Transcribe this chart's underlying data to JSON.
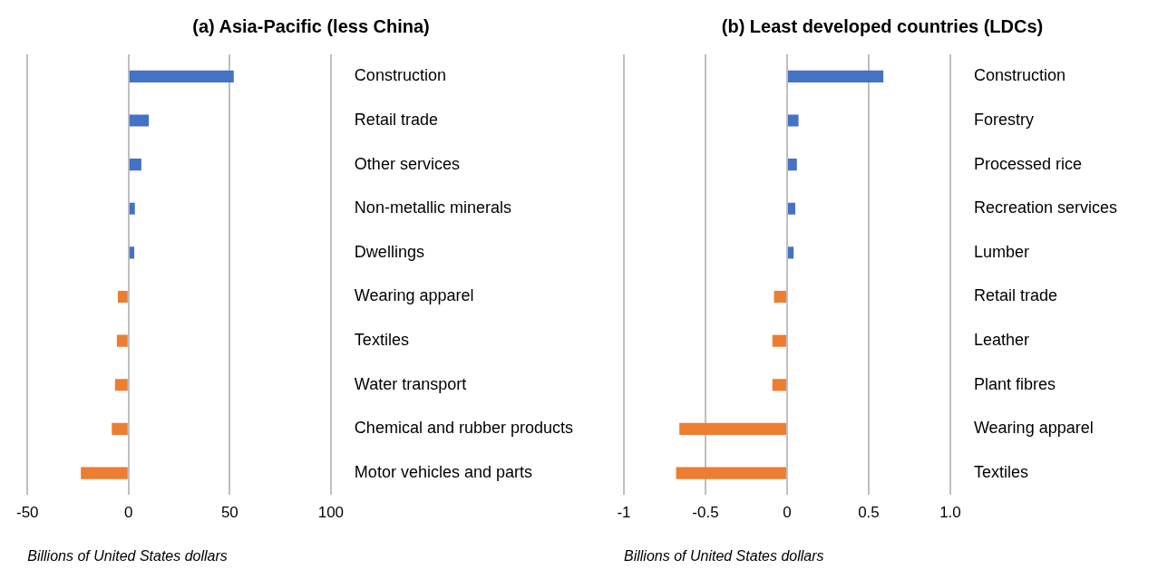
{
  "chart_data": [
    {
      "type": "bar",
      "orientation": "horizontal",
      "title": "(a) Asia-Pacific (less China)",
      "xlabel": "Billions of United States dollars",
      "categories": [
        "Construction",
        "Retail trade",
        "Other services",
        "Non-metallic minerals",
        "Dwellings",
        "Wearing apparel",
        "Textiles",
        "Water transport",
        "Chemical and rubber products",
        "Motor vehicles and parts"
      ],
      "values": [
        52,
        10,
        6.3,
        3.1,
        2.8,
        -5.3,
        -5.8,
        -6.7,
        -8.3,
        -23.6
      ],
      "colors": [
        "#4472c4",
        "#4472c4",
        "#4472c4",
        "#4472c4",
        "#4472c4",
        "#ed7d31",
        "#ed7d31",
        "#ed7d31",
        "#ed7d31",
        "#ed7d31"
      ],
      "xlim": [
        -50,
        100
      ],
      "xticks": [
        -50,
        0,
        50,
        100
      ],
      "grid": "x",
      "legend": false
    },
    {
      "type": "bar",
      "orientation": "horizontal",
      "title": "(b) Least developed countries (LDCs)",
      "xlabel": "Billions of United States dollars",
      "categories": [
        "Construction",
        "Forestry",
        "Processed rice",
        "Recreation services",
        "Lumber",
        "Retail trade",
        "Leather",
        "Plant fibres",
        "Wearing apparel",
        "Textiles"
      ],
      "values": [
        0.59,
        0.07,
        0.06,
        0.05,
        0.04,
        -0.08,
        -0.09,
        -0.09,
        -0.66,
        -0.68
      ],
      "colors": [
        "#4472c4",
        "#4472c4",
        "#4472c4",
        "#4472c4",
        "#4472c4",
        "#ed7d31",
        "#ed7d31",
        "#ed7d31",
        "#ed7d31",
        "#ed7d31"
      ],
      "xlim": [
        -1,
        1
      ],
      "xticks": [
        -1,
        -0.5,
        0,
        0.5,
        {
          "value": 1,
          "label": "1.0"
        }
      ],
      "grid": "x",
      "legend": false
    }
  ]
}
